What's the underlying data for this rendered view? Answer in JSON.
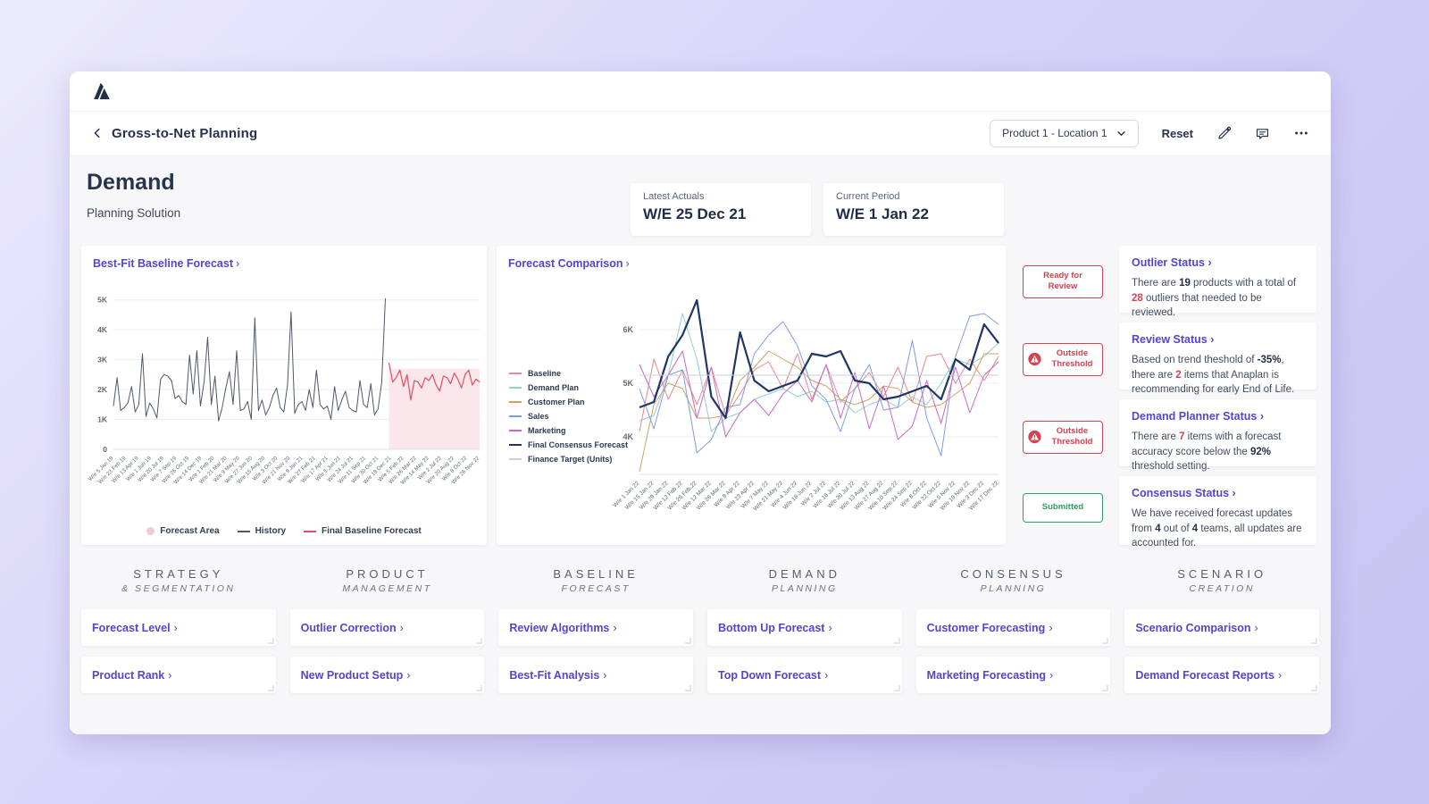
{
  "header": {
    "title": "Gross-to-Net Planning",
    "context_selector": "Product 1 - Location 1",
    "reset_label": "Reset"
  },
  "ui": {
    "chevron": "›"
  },
  "page": {
    "title": "Demand",
    "subtitle": "Planning Solution"
  },
  "info_cards": [
    {
      "label": "Latest Actuals",
      "value": "W/E 25 Dec 21"
    },
    {
      "label": "Current Period",
      "value": "W/E 1 Jan 22"
    }
  ],
  "chart_data": [
    {
      "type": "line",
      "title": "Best-Fit Baseline Forecast",
      "ylim": [
        0,
        5200
      ],
      "yticks": [
        0,
        1000,
        2000,
        3000,
        4000,
        5000
      ],
      "ytick_labels": [
        "0",
        "1K",
        "2K",
        "3K",
        "4K",
        "5K"
      ],
      "grid": true,
      "total_points": 102,
      "x_tick_labels": [
        "W/e 5 Jan 19",
        "W/e 23 Feb 19",
        "W/e 13 Apr 19",
        "W/e 1 Jun 19",
        "W/e 20 Jul 19",
        "W/e 7 Sep 19",
        "W/e 26 Oct 19",
        "W/e 14 Dec 19",
        "W/e 1 Feb 20",
        "W/e 21 Mar 20",
        "W/e 9 May 20",
        "W/e 27 Jun 20",
        "W/e 15 Aug 20",
        "W/e 3 Oct 20",
        "W/e 21 Nov 20",
        "W/e 9 Jan 21",
        "W/e 27 Feb 21",
        "W/e 17 Apr 21",
        "W/e 5 Jun 21",
        "W/e 24 Jul 21",
        "W/e 11 Sep 21",
        "W/e 30 Oct 21",
        "W/e 18 Dec 21",
        "W/e 5 Feb 22",
        "W/e 26 Mar 22",
        "W/e 14 May 22",
        "W/e 2 Jul 22",
        "W/e 20 Aug 22",
        "W/e 8 Oct 22",
        "W/e 26 Nov 22"
      ],
      "forecast_area": {
        "start_index": 76,
        "top_value": 2700,
        "color": "#fbe6ec"
      },
      "series": [
        {
          "name": "History",
          "color": "#4e5869",
          "width": 1,
          "offset": 0,
          "values": [
            1450,
            2400,
            1300,
            1400,
            1550,
            2100,
            1250,
            1500,
            3200,
            1100,
            1550,
            1350,
            1050,
            2350,
            2500,
            2450,
            2300,
            1700,
            1800,
            1600,
            1500,
            3150,
            1850,
            3300,
            1450,
            2250,
            3750,
            1500,
            2450,
            950,
            1400,
            2050,
            2600,
            1500,
            3300,
            1300,
            1350,
            1600,
            1000,
            4400,
            1300,
            1650,
            1150,
            1400,
            1800,
            2050,
            1400,
            1250,
            2150,
            4600,
            1200,
            1500,
            1600,
            1300,
            2000,
            1400,
            2650,
            1500,
            1350,
            1450,
            1000,
            2100,
            1300,
            1650,
            1950,
            1400,
            1300,
            1250,
            2300,
            1500,
            1400,
            2200,
            1150,
            1350,
            2250,
            5050
          ]
        },
        {
          "name": "Final Baseline Forecast",
          "color": "#e14f62",
          "width": 1.2,
          "offset": 76,
          "values": [
            2900,
            2250,
            2400,
            2650,
            2100,
            2500,
            1650,
            2300,
            2250,
            2050,
            2400,
            2300,
            2500,
            2150,
            1950,
            2450,
            2400,
            2200,
            2550,
            2350,
            2050,
            2500,
            2650,
            2150,
            2350,
            2250
          ]
        }
      ],
      "legend": [
        {
          "label": "Forecast Area",
          "swatch": "circle",
          "color": "#f4c9d6"
        },
        {
          "label": "History",
          "swatch": "line",
          "color": "#4e5869"
        },
        {
          "label": "Final Baseline Forecast",
          "swatch": "line",
          "color": "#e14f62"
        }
      ]
    },
    {
      "type": "line",
      "title": "Forecast Comparison",
      "ylim": [
        3300,
        6800
      ],
      "yticks": [
        4000,
        5000,
        6000
      ],
      "ytick_labels": [
        "4K",
        "5K",
        "6K"
      ],
      "grid": true,
      "total_points": 26,
      "legend_position": "left",
      "x_tick_labels": [
        "W/e 1 Jan 22",
        "W/e 15 Jan 22",
        "W/e 29 Jan 22",
        "W/e 12 Feb 22",
        "W/e 26 Feb 22",
        "W/e 12 Mar 22",
        "W/e 26 Mar 22",
        "W/e 9 Apr 22",
        "W/e 23 Apr 22",
        "W/e 7 May 22",
        "W/e 21 May 22",
        "W/e 4 Jun 22",
        "W/e 18 Jun 22",
        "W/e 2 Jul 22",
        "W/e 16 Jul 22",
        "W/e 30 Jul 22",
        "W/e 13 Aug 22",
        "W/e 27 Aug 22",
        "W/e 10 Sep 22",
        "W/e 24 Sep 22",
        "W/e 8 Oct 22",
        "W/e 22 Oct 22",
        "W/e 5 Nov 22",
        "W/e 19 Nov 22",
        "W/e 3 Dec 22",
        "W/e 17 Dec 22"
      ],
      "series": [
        {
          "name": "Baseline",
          "color": "#ed8490",
          "width": 1,
          "offset": 0,
          "values": [
            4100,
            5450,
            4700,
            5250,
            4600,
            5300,
            4400,
            4800,
            5250,
            5400,
            4900,
            5550,
            4700,
            5350,
            4650,
            4900,
            5200,
            4750,
            5300,
            4650,
            5500,
            5550,
            5000,
            5450,
            5050,
            5500
          ]
        },
        {
          "name": "Demand Plan",
          "color": "#8fd0cb",
          "width": 1,
          "offset": 0,
          "values": [
            4300,
            4400,
            5150,
            6300,
            5450,
            4100,
            4350,
            4450,
            4700,
            4800,
            4900,
            4750,
            4850,
            4650,
            4700,
            4450,
            4600,
            4700,
            4550,
            4750,
            4600,
            5000,
            5450,
            5350,
            5500,
            5750
          ]
        },
        {
          "name": "Customer Plan",
          "color": "#cda35f",
          "width": 1,
          "offset": 0,
          "values": [
            3350,
            4600,
            5000,
            4900,
            4350,
            4350,
            4400,
            5050,
            5300,
            5600,
            5450,
            5300,
            5050,
            4950,
            4700,
            4600,
            4700,
            4950,
            4900,
            4650,
            4550,
            4600,
            4800,
            5000,
            5550,
            5550
          ]
        },
        {
          "name": "Sales",
          "color": "#7f9ae8",
          "width": 1,
          "offset": 0,
          "values": [
            4900,
            4150,
            5150,
            5250,
            3700,
            3950,
            4550,
            4600,
            5550,
            5900,
            6150,
            5700,
            4950,
            4700,
            4100,
            4900,
            5350,
            4500,
            4550,
            5800,
            4350,
            3650,
            5500,
            6250,
            6300,
            6100
          ]
        },
        {
          "name": "Marketing",
          "color": "#c46ac2",
          "width": 1,
          "offset": 0,
          "values": [
            5350,
            4750,
            5150,
            5600,
            4350,
            5300,
            4000,
            4450,
            4700,
            4400,
            4800,
            5050,
            4650,
            5350,
            4350,
            5200,
            4150,
            4950,
            3950,
            4200,
            5050,
            4250,
            5300,
            4450,
            5150,
            5400
          ]
        },
        {
          "name": "Final Consensus Forecast",
          "color": "#1e3666",
          "width": 2.2,
          "offset": 0,
          "values": [
            4550,
            4650,
            5500,
            5900,
            6550,
            4750,
            4350,
            5950,
            5050,
            4850,
            4950,
            5050,
            5550,
            5500,
            5600,
            5050,
            5000,
            4700,
            4750,
            4850,
            4950,
            4700,
            5450,
            5250,
            6100,
            5750
          ]
        },
        {
          "name": "Finance Target (Units)",
          "color": "#c9d2da",
          "width": 1,
          "offset": 0,
          "values": [
            5150,
            5150,
            5150,
            5150,
            5150,
            5150,
            5150,
            5150,
            5150,
            5150,
            5150,
            5150,
            5150,
            5150,
            5150,
            5150,
            5150,
            5150,
            5150,
            5150,
            5150,
            5150,
            5150,
            5150,
            5150,
            5150
          ]
        }
      ]
    }
  ],
  "status_badges": [
    {
      "label": "Ready for Review",
      "tone": "red",
      "icon": false
    },
    {
      "label": "Outside Threshold",
      "tone": "red",
      "icon": true
    },
    {
      "label": "Outside Threshold",
      "tone": "red",
      "icon": true
    },
    {
      "label": "Submitted",
      "tone": "green",
      "icon": false
    }
  ],
  "status_cards": [
    {
      "title": "Outlier Status",
      "segments": [
        {
          "t": "There are "
        },
        {
          "t": "19",
          "b": 1
        },
        {
          "t": " products with a total of "
        },
        {
          "t": "28",
          "r": 1
        },
        {
          "t": " outliers that needed to be reviewed."
        }
      ]
    },
    {
      "title": "Review Status",
      "segments": [
        {
          "t": "Based on trend theshold of "
        },
        {
          "t": "-35%",
          "b": 1
        },
        {
          "t": ", there are "
        },
        {
          "t": "2",
          "r": 1
        },
        {
          "t": " items that Anaplan is recommending for early End of Life."
        }
      ]
    },
    {
      "title": "Demand Planner Status",
      "segments": [
        {
          "t": "There are "
        },
        {
          "t": "7",
          "r": 1
        },
        {
          "t": " items with a forecast accuracy score below the "
        },
        {
          "t": "92%",
          "b": 1
        },
        {
          "t": " threshold setting."
        }
      ]
    },
    {
      "title": "Consensus Status",
      "segments": [
        {
          "t": "We have received forecast updates from "
        },
        {
          "t": "4",
          "b": 1
        },
        {
          "t": " out of "
        },
        {
          "t": "4",
          "b": 1
        },
        {
          "t": " teams, all updates are accounted for."
        }
      ]
    }
  ],
  "sections": [
    {
      "title": "STRATEGY",
      "subtitle": "& SEGMENTATION",
      "links": [
        "Forecast Level",
        "Product Rank"
      ]
    },
    {
      "title": "PRODUCT",
      "subtitle": "MANAGEMENT",
      "links": [
        "Outlier Correction",
        "New Product Setup"
      ]
    },
    {
      "title": "BASELINE",
      "subtitle": "FORECAST",
      "links": [
        "Review Algorithms",
        "Best-Fit Analysis"
      ]
    },
    {
      "title": "DEMAND",
      "subtitle": "PLANNING",
      "links": [
        "Bottom Up Forecast",
        "Top Down Forecast"
      ]
    },
    {
      "title": "CONSENSUS",
      "subtitle": "PLANNING",
      "links": [
        "Customer Forecasting",
        "Marketing Forecasting"
      ]
    },
    {
      "title": "SCENARIO",
      "subtitle": "CREATION",
      "links": [
        "Scenario Comparison",
        "Demand Forecast Reports"
      ]
    }
  ],
  "colors": {
    "accent_purple": "#5146d0",
    "alert_red": "#d8414f",
    "success_green": "#2f9e62",
    "dark_navy": "#25324d",
    "body_bg": "#f7f7f9"
  }
}
